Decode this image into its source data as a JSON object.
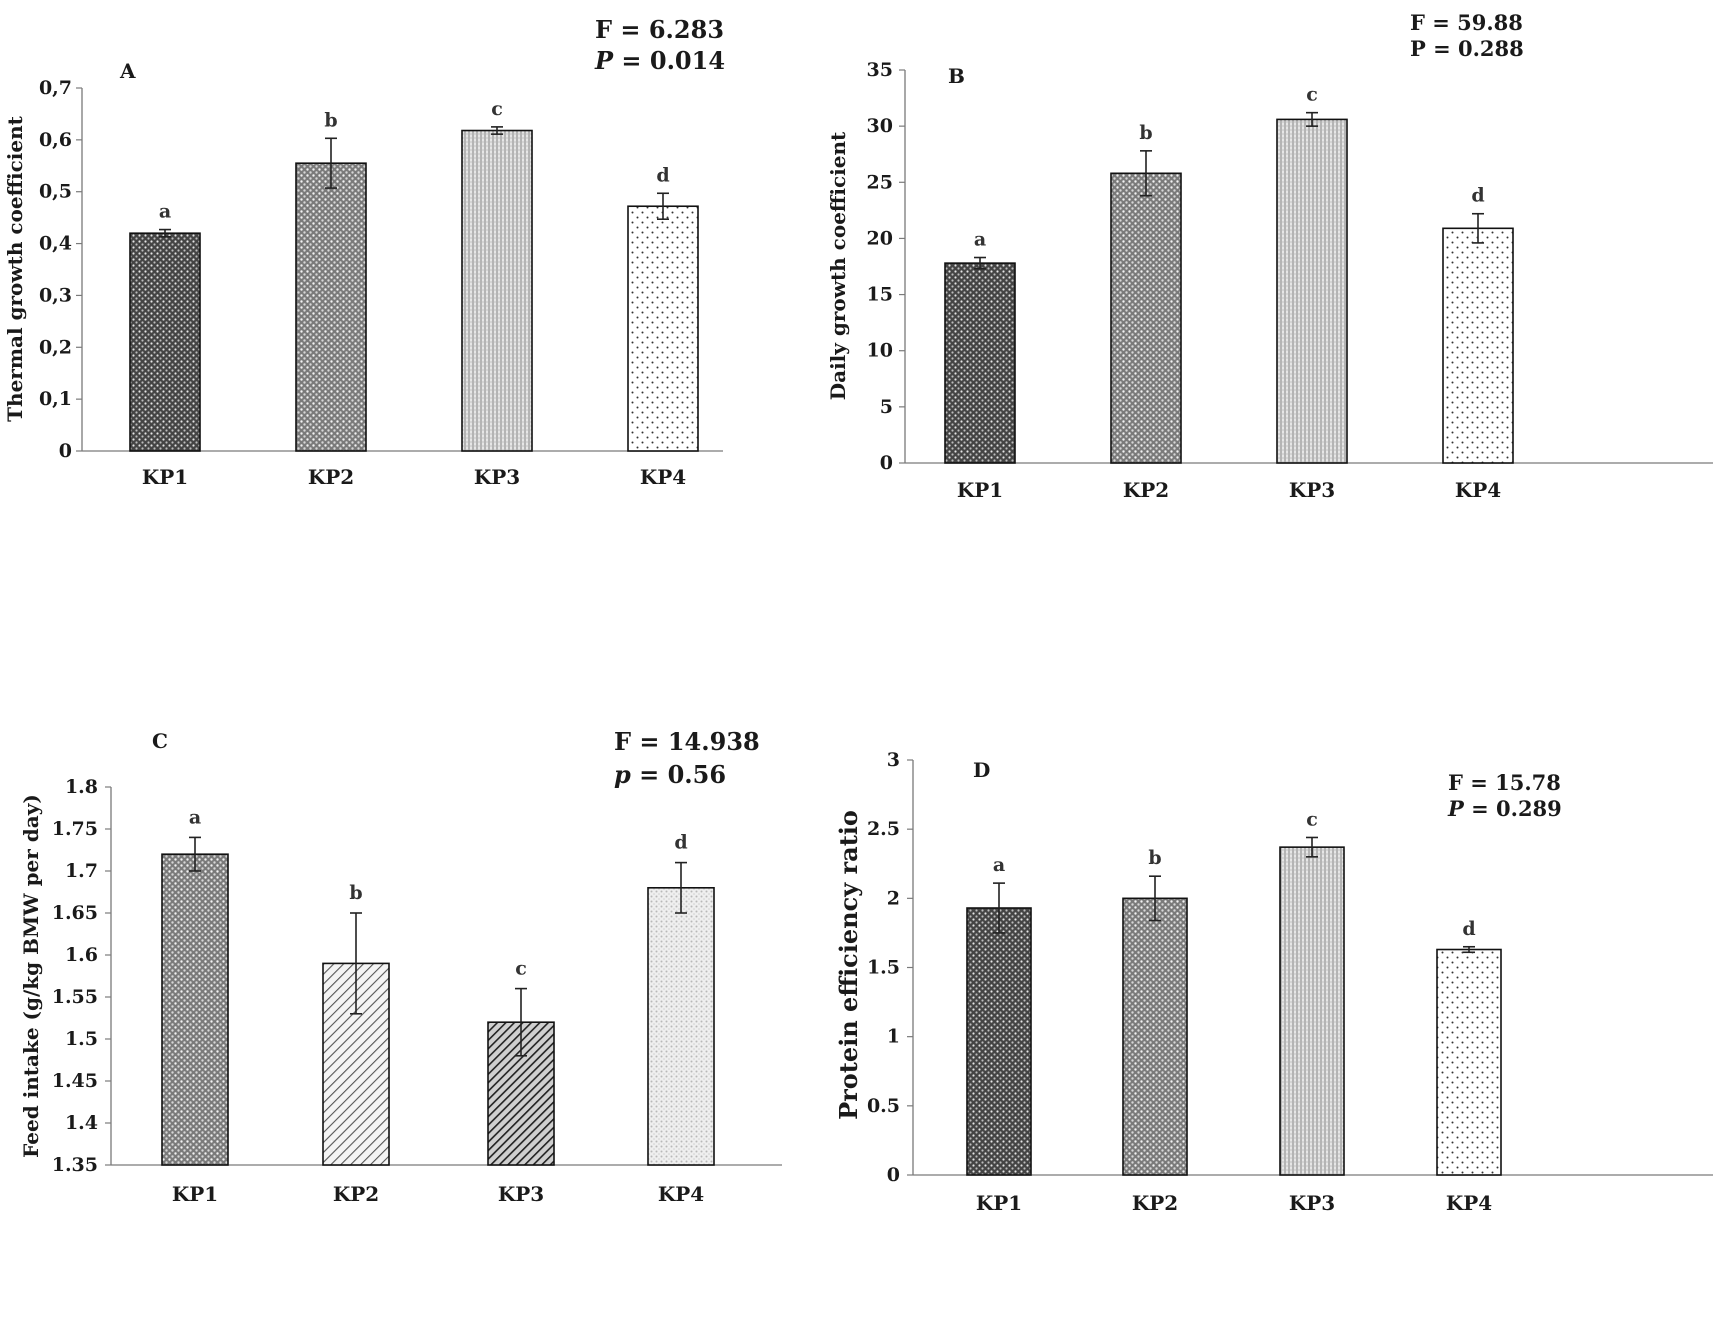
{
  "chart_data": [
    {
      "type": "bar",
      "panel": "A",
      "categories": [
        "KP1",
        "KP2",
        "KP3",
        "KP4"
      ],
      "values": [
        0.42,
        0.555,
        0.618,
        0.472
      ],
      "errors": [
        0.007,
        0.048,
        0.007,
        0.025
      ],
      "letters": [
        "a",
        "b",
        "c",
        "d"
      ],
      "ylabel": "Thermal growth coefficient",
      "ylim": [
        0,
        0.7
      ],
      "ticks": [
        "0",
        "0,1",
        "0,2",
        "0,3",
        "0,4",
        "0,5",
        "0,6",
        "0,7"
      ],
      "stats": {
        "f": "F = 6.283",
        "p_label": "P",
        "p_rest": " = 0.014"
      }
    },
    {
      "type": "bar",
      "panel": "B",
      "categories": [
        "KP1",
        "KP2",
        "KP3",
        "KP4"
      ],
      "values": [
        17.8,
        25.8,
        30.6,
        20.9
      ],
      "errors": [
        0.5,
        2.0,
        0.6,
        1.3
      ],
      "letters": [
        "a",
        "b",
        "c",
        "d"
      ],
      "ylabel": "Daily growth coefficient",
      "ylim": [
        0,
        35
      ],
      "ticks": [
        "0",
        "5",
        "10",
        "15",
        "20",
        "25",
        "30",
        "35"
      ],
      "stats": {
        "f": "F = 59.88",
        "p_label": "P",
        "p_rest": " = 0.288"
      }
    },
    {
      "type": "bar",
      "panel": "C",
      "categories": [
        "KP1",
        "KP2",
        "KP3",
        "KP4"
      ],
      "values": [
        1.72,
        1.59,
        1.52,
        1.68
      ],
      "errors": [
        0.02,
        0.06,
        0.04,
        0.03
      ],
      "letters": [
        "a",
        "b",
        "c",
        "d"
      ],
      "ylabel": "Feed intake (g/kg BMW per day)",
      "ylim": [
        1.35,
        1.8
      ],
      "ticks": [
        "1.35",
        "1.4",
        "1.45",
        "1.5",
        "1.55",
        "1.6",
        "1.65",
        "1.7",
        "1.75",
        "1.8"
      ],
      "stats": {
        "f": "F = 14.938",
        "p_label": "p",
        "p_rest": " = 0.56"
      }
    },
    {
      "type": "bar",
      "panel": "D",
      "categories": [
        "KP1",
        "KP2",
        "KP3",
        "KP4"
      ],
      "values": [
        1.93,
        2.0,
        2.37,
        1.63
      ],
      "errors": [
        0.18,
        0.16,
        0.07,
        0.02
      ],
      "letters": [
        "a",
        "b",
        "c",
        "d"
      ],
      "ylabel": "Protein efficiency ratio",
      "ylim": [
        0,
        3
      ],
      "ticks": [
        "0",
        "0.5",
        "1",
        "1.5",
        "2",
        "2.5",
        "3"
      ],
      "stats": {
        "f": "F = 15.78",
        "p_label": "P",
        "p_rest": " = 0.289"
      }
    }
  ],
  "colors": {
    "axis": "#7a7a7a",
    "bar_stroke": "#111111",
    "text": "#1a1a1a"
  }
}
